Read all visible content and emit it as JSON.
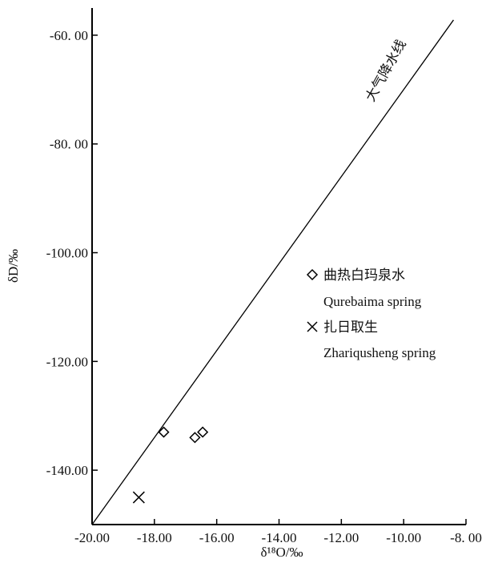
{
  "chart_data": {
    "type": "scatter",
    "xlabel": "δ¹⁸O/‰",
    "ylabel": "δD/‰",
    "xlim": [
      -20,
      -8
    ],
    "ylim": [
      -150,
      -55
    ],
    "x_ticks": [
      -20,
      -18,
      -16,
      -14,
      -12,
      -10,
      -8
    ],
    "x_tick_labels": [
      "-20.00",
      "-18.00",
      "-16.00",
      "-14.00",
      "-12.00",
      "-10.00",
      "-8. 00"
    ],
    "y_ticks": [
      -60,
      -80,
      -100,
      -120,
      -140
    ],
    "y_tick_labels": [
      "-60. 00",
      "-80. 00",
      "-100.00",
      "-120.00",
      "-140.00"
    ],
    "grid": false,
    "legend_position": "right",
    "reference_line": {
      "label": "大气降水线",
      "slope": 8,
      "intercept": 10,
      "x_range": [
        -20,
        -8.4
      ]
    },
    "series": [
      {
        "name": "曲热白玛泉水",
        "name_en": "Qurebaima spring",
        "marker": "diamond",
        "points": [
          {
            "x": -17.7,
            "y": -133
          },
          {
            "x": -16.7,
            "y": -134
          },
          {
            "x": -16.45,
            "y": -133
          }
        ]
      },
      {
        "name": "扎日取生",
        "name_en": "Zhariqusheng spring",
        "marker": "x",
        "points": [
          {
            "x": -18.5,
            "y": -145
          }
        ]
      }
    ]
  }
}
